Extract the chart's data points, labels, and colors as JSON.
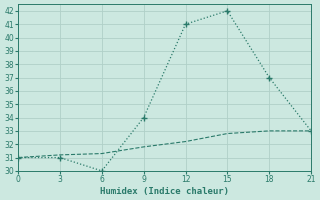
{
  "xlabel": "Humidex (Indice chaleur)",
  "x_line1": [
    0,
    3,
    6,
    9,
    12,
    15,
    18,
    21
  ],
  "y_line1": [
    31,
    31,
    30,
    34,
    41,
    42,
    37,
    33
  ],
  "x_line2": [
    0,
    3,
    6,
    9,
    12,
    15,
    18,
    21
  ],
  "y_line2": [
    31.0,
    31.2,
    31.3,
    31.8,
    32.2,
    32.8,
    33.0,
    33.0
  ],
  "line_color": "#2a7a6a",
  "bg_color": "#cce8e0",
  "grid_color": "#b0d0c8",
  "xlim": [
    0,
    21
  ],
  "ylim": [
    30,
    42
  ],
  "xticks": [
    0,
    3,
    6,
    9,
    12,
    15,
    18,
    21
  ],
  "yticks": [
    30,
    31,
    32,
    33,
    34,
    35,
    36,
    37,
    38,
    39,
    40,
    41,
    42
  ]
}
